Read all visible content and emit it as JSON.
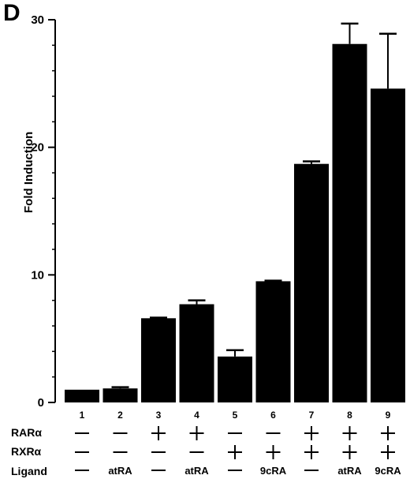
{
  "panel_label": "D",
  "row_labels": {
    "rar": "RARα",
    "rxr": "RXRα",
    "ligand": "Ligand"
  },
  "dash_symbol": "—",
  "plus_symbol": "+",
  "bar_color": "#000000",
  "chart_data": {
    "type": "bar",
    "title": "",
    "xlabel": "",
    "ylabel": "Fold Induction",
    "ylim": [
      0,
      30
    ],
    "yticks": [
      0,
      10,
      20,
      30
    ],
    "minor_tick_step": 2,
    "grid": false,
    "categories": [
      "1",
      "2",
      "3",
      "4",
      "5",
      "6",
      "7",
      "8",
      "9"
    ],
    "values": [
      1.0,
      1.1,
      6.6,
      7.7,
      3.6,
      9.5,
      18.7,
      28.1,
      24.6
    ],
    "errors": [
      0,
      0.1,
      0.05,
      0.3,
      0.5,
      0.05,
      0.2,
      1.6,
      4.3
    ],
    "conditions": {
      "rar": [
        "—",
        "—",
        "+",
        "+",
        "—",
        "—",
        "+",
        "+",
        "+"
      ],
      "rxr": [
        "—",
        "—",
        "—",
        "—",
        "+",
        "+",
        "+",
        "+",
        "+"
      ],
      "ligand": [
        "—",
        "atRA",
        "—",
        "atRA",
        "—",
        "9cRA",
        "—",
        "atRA",
        "9cRA"
      ]
    }
  }
}
